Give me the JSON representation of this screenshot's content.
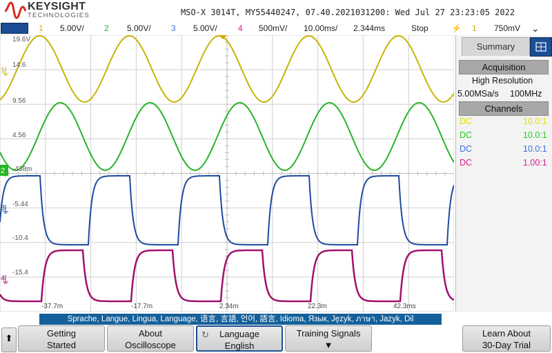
{
  "header": {
    "brand": "KEYSIGHT",
    "brand_sub": "TECHNOLOGIES",
    "instrument_info": "MSO-X 3014T, MY55440247, 07.40.2021031200: Wed Jul 27 23:23:05 2022"
  },
  "channel_bar": {
    "ch1_num": "1",
    "ch1_scale": "5.00V/",
    "ch2_num": "2",
    "ch2_scale": "5.00V/",
    "ch3_num": "3",
    "ch3_scale": "5.00V/",
    "ch4_num": "4",
    "ch4_scale": "500mV/",
    "timebase": "10.00ms/",
    "delay": "2.344ms",
    "run_state": "Stop",
    "trigger_source": "1",
    "trigger_level": "750mV"
  },
  "graticule": {
    "y_labels": [
      "19.6V",
      "14.6",
      "9.56",
      "4.56",
      "-438m",
      "-5.44",
      "-10.4",
      "-15.4"
    ],
    "x_labels": [
      "-37.7m",
      "-17.7m",
      "2.34m",
      "22.3m",
      "42.3ms"
    ],
    "channel_markers": [
      "1",
      "2",
      "3",
      "4"
    ]
  },
  "sidebar": {
    "tab_summary": "Summary",
    "acquisition_title": "Acquisition",
    "acquisition_mode": "High Resolution",
    "sample_rate": "5.00MSa/s",
    "bandwidth": "100MHz",
    "channels_title": "Channels",
    "channels": [
      {
        "coupling": "DC",
        "probe": "10.0:1",
        "color": "#e0e000"
      },
      {
        "coupling": "DC",
        "probe": "10.0:1",
        "color": "#22cc22"
      },
      {
        "coupling": "DC",
        "probe": "10.0:1",
        "color": "#3a6fd8"
      },
      {
        "coupling": "DC",
        "probe": "1.00:1",
        "color": "#d81c8f"
      }
    ]
  },
  "language_strip": "Sprache, Langue, Lingua, Language, 语言, 言語, 언어, 語言, Idioma, Язык, Język, ภาษา, Jazyk, Dil",
  "softkeys": {
    "back_label": "⬆",
    "getting_started_l1": "Getting",
    "getting_started_l2": "Started",
    "about_l1": "About",
    "about_l2": "Oscilloscope",
    "language_l1": "Language",
    "language_l2": "English",
    "training_l1": "Training Signals",
    "training_l2": "▼",
    "learn_l1": "Learn About",
    "learn_l2": "30-Day Trial"
  },
  "colors": {
    "ch1": "#c8b400",
    "ch2": "#28b428",
    "ch3": "#1c4aa0",
    "ch4": "#a0106e",
    "accent": "#1b4d94"
  }
}
